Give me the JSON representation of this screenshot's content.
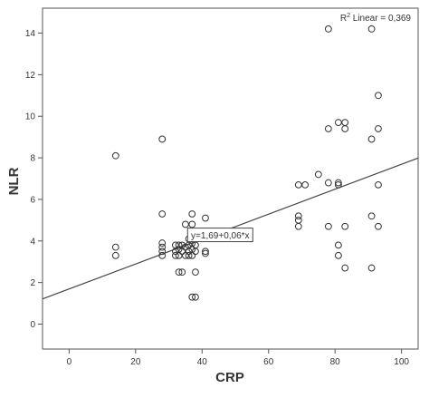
{
  "chart_data": {
    "type": "scatter",
    "xlabel": "CRP",
    "ylabel": "NLR",
    "xlim": [
      -8,
      105
    ],
    "ylim": [
      -1.2,
      15.2
    ],
    "x_ticks": [
      0,
      20,
      40,
      60,
      80,
      100
    ],
    "y_ticks": [
      0,
      2,
      4,
      6,
      8,
      10,
      12,
      14
    ],
    "grid": false,
    "r2_base": "R",
    "r2_exp": "2",
    "r2_text": " Linear = 0,369",
    "fit_line": {
      "intercept": 1.69,
      "slope": 0.06,
      "label": "y=1,69+0,06*x"
    },
    "points": [
      [
        14,
        8.1
      ],
      [
        14,
        3.7
      ],
      [
        14,
        3.3
      ],
      [
        28,
        8.9
      ],
      [
        28,
        5.3
      ],
      [
        28,
        3.9
      ],
      [
        28,
        3.7
      ],
      [
        28,
        3.5
      ],
      [
        28,
        3.3
      ],
      [
        32,
        3.8
      ],
      [
        32,
        3.5
      ],
      [
        32,
        3.3
      ],
      [
        33,
        3.8
      ],
      [
        33,
        3.6
      ],
      [
        33,
        3.3
      ],
      [
        33,
        2.5
      ],
      [
        34,
        3.8
      ],
      [
        34,
        3.5
      ],
      [
        34,
        2.5
      ],
      [
        35,
        4.8
      ],
      [
        35,
        3.7
      ],
      [
        35,
        3.3
      ],
      [
        36,
        4.1
      ],
      [
        36,
        3.8
      ],
      [
        36,
        3.5
      ],
      [
        36,
        3.3
      ],
      [
        37,
        5.3
      ],
      [
        37,
        4.8
      ],
      [
        37,
        3.9
      ],
      [
        37,
        3.6
      ],
      [
        37,
        3.3
      ],
      [
        37,
        1.3
      ],
      [
        38,
        3.8
      ],
      [
        38,
        3.5
      ],
      [
        38,
        2.5
      ],
      [
        38,
        1.3
      ],
      [
        41,
        5.1
      ],
      [
        41,
        3.5
      ],
      [
        41,
        3.4
      ],
      [
        69,
        6.7
      ],
      [
        69,
        5.2
      ],
      [
        69,
        5.0
      ],
      [
        69,
        4.7
      ],
      [
        71,
        6.7
      ],
      [
        75,
        7.2
      ],
      [
        78,
        14.2
      ],
      [
        78,
        9.4
      ],
      [
        78,
        6.8
      ],
      [
        78,
        4.7
      ],
      [
        81,
        9.7
      ],
      [
        81,
        6.8
      ],
      [
        81,
        6.7
      ],
      [
        81,
        3.8
      ],
      [
        81,
        3.3
      ],
      [
        83,
        9.7
      ],
      [
        83,
        9.4
      ],
      [
        83,
        4.7
      ],
      [
        83,
        2.7
      ],
      [
        91,
        14.2
      ],
      [
        91,
        8.9
      ],
      [
        91,
        5.2
      ],
      [
        91,
        2.7
      ],
      [
        93,
        11.0
      ],
      [
        93,
        9.4
      ],
      [
        93,
        6.7
      ],
      [
        93,
        4.7
      ]
    ]
  }
}
